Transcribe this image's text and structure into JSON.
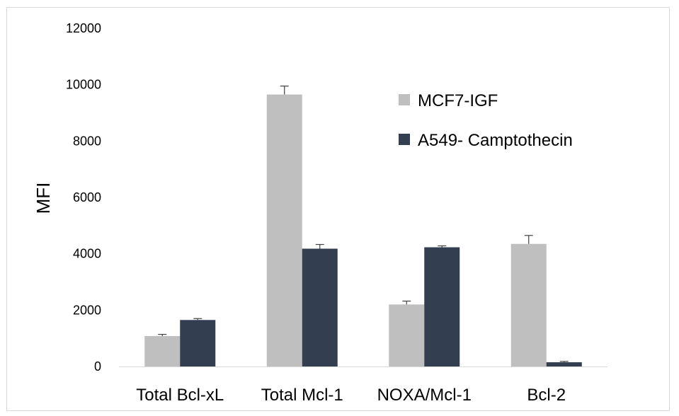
{
  "colors": {
    "series_0": "#bfbfbf",
    "series_1": "#333f50",
    "axis_line": "#d9d9d9",
    "frame": "#d9d9d9",
    "error_bar": "#404040"
  },
  "chart_data": {
    "type": "bar",
    "title": "",
    "xlabel": "",
    "ylabel": "MFI",
    "ylim": [
      0,
      12000
    ],
    "yticks": [
      "0",
      "2000",
      "4000",
      "6000",
      "8000",
      "10000",
      "12000"
    ],
    "grid": false,
    "legend_position": "top-right",
    "categories": [
      "Total Bcl-xL",
      "Total Mcl-1",
      "NOXA/Mcl-1",
      "Bcl-2"
    ],
    "series": [
      {
        "name": "MCF7-IGF",
        "values": [
          1080,
          9650,
          2200,
          4350
        ],
        "errors": [
          60,
          300,
          120,
          300
        ]
      },
      {
        "name": "A549- Camptothecin",
        "values": [
          1650,
          4180,
          4230,
          150
        ],
        "errors": [
          50,
          150,
          50,
          30
        ]
      }
    ]
  }
}
